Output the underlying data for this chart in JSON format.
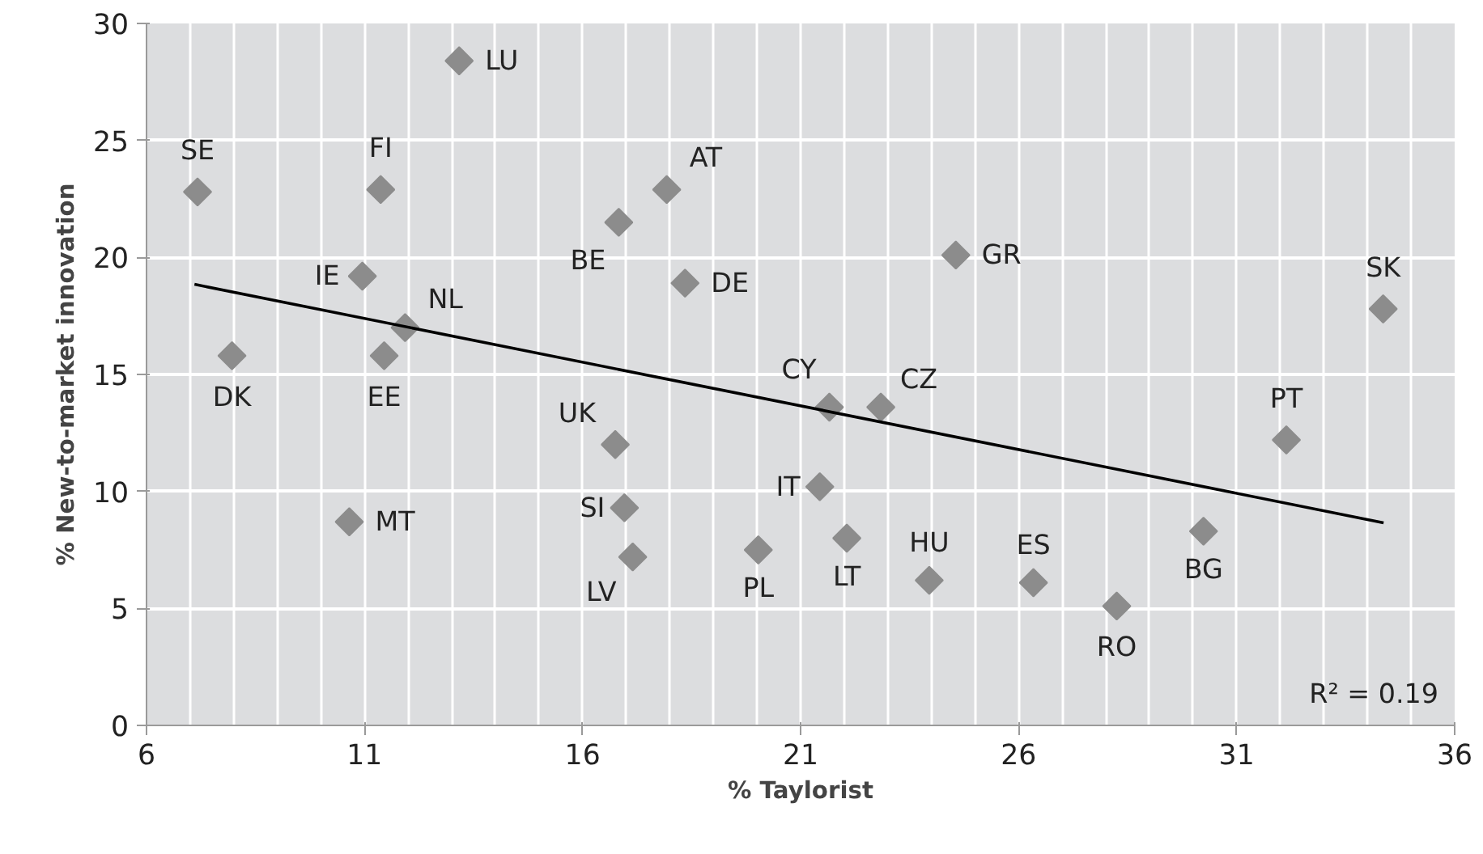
{
  "chart_data": {
    "type": "scatter",
    "xlabel": "% Taylorist",
    "ylabel": "% New-to-market innovation",
    "xlim": [
      6,
      36
    ],
    "xticks": [
      6,
      11,
      16,
      21,
      26,
      31,
      36
    ],
    "ylim": [
      0,
      30
    ],
    "yticks": [
      0,
      5,
      10,
      15,
      20,
      25,
      30
    ],
    "grid": true,
    "marker": "diamond",
    "line_style": "solid",
    "series": [
      {
        "color": "#8c8c8c",
        "x": [
          7.17,
          11.37,
          13.17,
          17.93,
          16.83,
          18.35,
          10.95,
          11.93,
          7.96,
          11.45,
          24.56,
          34.36,
          21.66,
          22.84,
          32.14,
          21.44,
          22.06,
          20.03,
          23.95,
          26.34,
          28.25,
          30.24,
          16.75,
          16.96,
          17.15,
          10.65
        ],
        "values": [
          22.8,
          22.9,
          28.4,
          22.9,
          21.5,
          18.9,
          19.2,
          17.0,
          15.8,
          15.8,
          20.1,
          17.8,
          13.6,
          13.6,
          12.2,
          10.2,
          8.0,
          7.5,
          6.2,
          6.1,
          5.1,
          8.3,
          12.0,
          9.3,
          7.2,
          8.7
        ]
      },
      {
        "type": "line",
        "marker": "none",
        "color": "#000000",
        "x": [
          7.1,
          34.37
        ],
        "values": [
          18.85,
          8.66
        ]
      }
    ],
    "annotations": [
      {
        "text": "SE",
        "x": 7.17,
        "y": 22.8
      },
      {
        "text": "FI",
        "x": 11.37,
        "y": 22.9
      },
      {
        "text": "LU",
        "x": 13.17,
        "y": 28.4
      },
      {
        "text": "AT",
        "x": 17.93,
        "y": 22.9
      },
      {
        "text": "BE",
        "x": 16.83,
        "y": 21.5
      },
      {
        "text": "DE",
        "x": 18.35,
        "y": 18.9
      },
      {
        "text": "IE",
        "x": 10.95,
        "y": 19.2
      },
      {
        "text": "NL",
        "x": 11.93,
        "y": 17.0
      },
      {
        "text": "DK",
        "x": 7.96,
        "y": 15.8
      },
      {
        "text": "EE",
        "x": 11.45,
        "y": 15.8
      },
      {
        "text": "GR",
        "x": 24.56,
        "y": 20.1
      },
      {
        "text": "SK",
        "x": 34.36,
        "y": 17.8
      },
      {
        "text": "CY",
        "x": 21.66,
        "y": 13.6
      },
      {
        "text": "CZ",
        "x": 22.84,
        "y": 13.6
      },
      {
        "text": "PT",
        "x": 32.14,
        "y": 12.2
      },
      {
        "text": "IT",
        "x": 21.44,
        "y": 10.2
      },
      {
        "text": "LT",
        "x": 22.06,
        "y": 8.0
      },
      {
        "text": "PL",
        "x": 20.03,
        "y": 7.5
      },
      {
        "text": "HU",
        "x": 23.95,
        "y": 6.2
      },
      {
        "text": "ES",
        "x": 26.34,
        "y": 6.1
      },
      {
        "text": "RO",
        "x": 28.25,
        "y": 5.1
      },
      {
        "text": "BG",
        "x": 30.24,
        "y": 8.3
      },
      {
        "text": "UK",
        "x": 16.75,
        "y": 12.0
      },
      {
        "text": "SI",
        "x": 16.96,
        "y": 9.3
      },
      {
        "text": "LV",
        "x": 17.15,
        "y": 7.2
      },
      {
        "text": "MT",
        "x": 10.65,
        "y": 8.7
      },
      "R² = 0.19"
    ]
  }
}
